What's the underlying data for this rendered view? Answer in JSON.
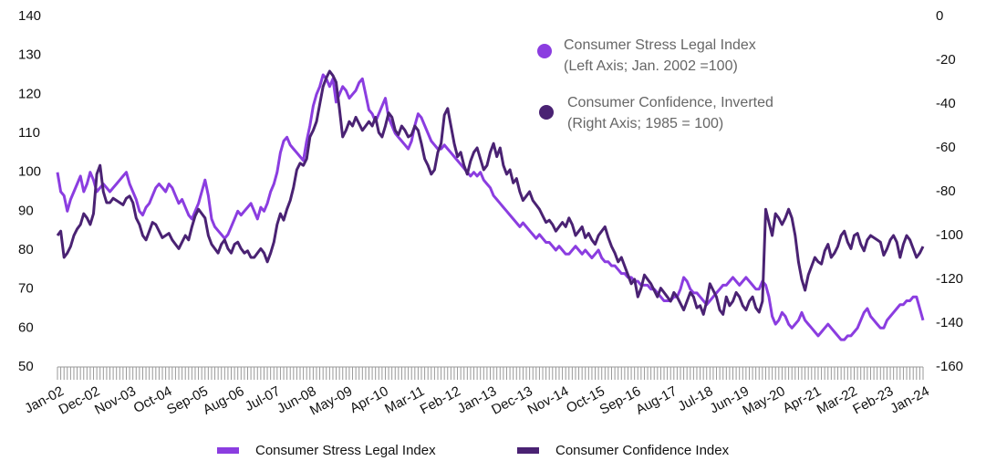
{
  "chart_data": {
    "type": "line",
    "categories": [
      "Jan-02",
      null,
      null,
      null,
      null,
      null,
      null,
      null,
      null,
      null,
      null,
      "Dec-02",
      null,
      null,
      null,
      null,
      null,
      null,
      null,
      null,
      null,
      null,
      "Nov-03",
      null,
      null,
      null,
      null,
      null,
      null,
      null,
      null,
      null,
      null,
      "Oct-04",
      null,
      null,
      null,
      null,
      null,
      null,
      null,
      null,
      null,
      null,
      "Sep-05",
      null,
      null,
      null,
      null,
      null,
      null,
      null,
      null,
      null,
      null,
      "Aug-06",
      null,
      null,
      null,
      null,
      null,
      null,
      null,
      null,
      null,
      null,
      "Jul-07",
      null,
      null,
      null,
      null,
      null,
      null,
      null,
      null,
      null,
      null,
      "Jun-08",
      null,
      null,
      null,
      null,
      null,
      null,
      null,
      null,
      null,
      null,
      "May-09",
      null,
      null,
      null,
      null,
      null,
      null,
      null,
      null,
      null,
      null,
      "Apr-10",
      null,
      null,
      null,
      null,
      null,
      null,
      null,
      null,
      null,
      null,
      "Mar-11",
      null,
      null,
      null,
      null,
      null,
      null,
      null,
      null,
      null,
      null,
      "Feb-12",
      null,
      null,
      null,
      null,
      null,
      null,
      null,
      null,
      null,
      null,
      "Jan-13",
      null,
      null,
      null,
      null,
      null,
      null,
      null,
      null,
      null,
      null,
      "Dec-13",
      null,
      null,
      null,
      null,
      null,
      null,
      null,
      null,
      null,
      null,
      "Nov-14",
      null,
      null,
      null,
      null,
      null,
      null,
      null,
      null,
      null,
      null,
      "Oct-15",
      null,
      null,
      null,
      null,
      null,
      null,
      null,
      null,
      null,
      null,
      "Sep-16",
      null,
      null,
      null,
      null,
      null,
      null,
      null,
      null,
      null,
      null,
      "Aug-17",
      null,
      null,
      null,
      null,
      null,
      null,
      null,
      null,
      null,
      null,
      "Jul-18",
      null,
      null,
      null,
      null,
      null,
      null,
      null,
      null,
      null,
      null,
      "Jun-19",
      null,
      null,
      null,
      null,
      null,
      null,
      null,
      null,
      null,
      null,
      "May-20",
      null,
      null,
      null,
      null,
      null,
      null,
      null,
      null,
      null,
      null,
      "Apr-21",
      null,
      null,
      null,
      null,
      null,
      null,
      null,
      null,
      null,
      null,
      "Mar-22",
      null,
      null,
      null,
      null,
      null,
      null,
      null,
      null,
      null,
      null,
      "Feb-23",
      null,
      null,
      null,
      null,
      null,
      null,
      null,
      null,
      null,
      null,
      "Jan-24"
    ],
    "series": [
      {
        "name": "Consumer Stress Legal Index",
        "color": "#8b3de0",
        "axis": "y",
        "values": [
          100,
          95,
          94,
          90,
          93,
          95,
          97,
          99,
          95,
          97,
          100,
          98,
          95,
          96,
          97,
          96,
          95,
          96,
          97,
          98,
          99,
          100,
          97,
          95,
          93,
          90,
          89,
          91,
          92,
          94,
          96,
          97,
          96,
          95,
          97,
          96,
          94,
          92,
          93,
          91,
          89,
          88,
          90,
          92,
          95,
          98,
          94,
          88,
          86,
          85,
          84,
          83,
          84,
          86,
          88,
          90,
          89,
          90,
          91,
          92,
          90,
          88,
          91,
          90,
          92,
          95,
          97,
          100,
          105,
          108,
          109,
          107,
          106,
          105,
          104,
          103,
          108,
          112,
          117,
          120,
          122,
          125,
          124,
          122,
          124,
          118,
          120,
          122,
          121,
          119,
          120,
          121,
          123,
          124,
          120,
          116,
          115,
          113,
          115,
          117,
          119,
          114,
          112,
          110,
          109,
          108,
          107,
          106,
          108,
          112,
          115,
          114,
          112,
          110,
          108,
          107,
          106,
          106,
          107,
          106,
          105,
          104,
          103,
          102,
          101,
          100,
          99,
          100,
          99,
          100,
          98,
          97,
          96,
          94,
          93,
          92,
          91,
          90,
          89,
          88,
          87,
          86,
          87,
          86,
          85,
          84,
          83,
          84,
          83,
          82,
          82,
          81,
          80,
          81,
          80,
          79,
          79,
          80,
          81,
          80,
          79,
          80,
          79,
          78,
          79,
          80,
          78,
          77,
          77,
          76,
          76,
          75,
          74,
          74,
          73,
          73,
          72,
          72,
          71,
          71,
          71,
          70,
          70,
          69,
          68,
          67,
          67,
          67,
          68,
          68,
          70,
          73,
          72,
          70,
          69,
          69,
          68,
          67,
          66,
          67,
          68,
          69,
          70,
          71,
          71,
          72,
          73,
          72,
          71,
          72,
          73,
          72,
          71,
          70,
          70,
          72,
          71,
          68,
          63,
          61,
          62,
          64,
          63,
          61,
          60,
          61,
          62,
          64,
          62,
          61,
          60,
          59,
          58,
          59,
          60,
          61,
          60,
          59,
          58,
          57,
          57,
          58,
          58,
          59,
          60,
          62,
          64,
          65,
          63,
          62,
          61,
          60,
          60,
          62,
          63,
          64,
          65,
          66,
          66,
          67,
          67,
          68,
          68,
          65,
          62
        ]
      },
      {
        "name": "Consumer Confidence Index",
        "color": "#4a2273",
        "axis": "y2",
        "values": [
          -100,
          -98,
          -110,
          -108,
          -105,
          -100,
          -97,
          -95,
          -90,
          -92,
          -95,
          -90,
          -72,
          -68,
          -80,
          -85,
          -85,
          -83,
          -84,
          -85,
          -86,
          -83,
          -82,
          -85,
          -92,
          -95,
          -100,
          -102,
          -98,
          -94,
          -95,
          -98,
          -101,
          -100,
          -99,
          -102,
          -104,
          -106,
          -103,
          -100,
          -102,
          -96,
          -91,
          -88,
          -90,
          -92,
          -100,
          -104,
          -106,
          -108,
          -104,
          -102,
          -106,
          -108,
          -104,
          -103,
          -106,
          -108,
          -107,
          -110,
          -110,
          -108,
          -106,
          -108,
          -112,
          -108,
          -103,
          -95,
          -90,
          -93,
          -88,
          -84,
          -78,
          -70,
          -67,
          -68,
          -65,
          -55,
          -52,
          -48,
          -40,
          -32,
          -28,
          -25,
          -27,
          -30,
          -42,
          -55,
          -52,
          -48,
          -50,
          -46,
          -49,
          -52,
          -50,
          -48,
          -50,
          -46,
          -53,
          -55,
          -50,
          -44,
          -46,
          -52,
          -54,
          -50,
          -52,
          -55,
          -54,
          -50,
          -52,
          -58,
          -65,
          -68,
          -72,
          -70,
          -62,
          -58,
          -45,
          -42,
          -50,
          -58,
          -64,
          -62,
          -68,
          -72,
          -66,
          -62,
          -60,
          -65,
          -70,
          -68,
          -62,
          -58,
          -64,
          -60,
          -68,
          -72,
          -70,
          -76,
          -74,
          -80,
          -84,
          -82,
          -80,
          -84,
          -86,
          -88,
          -91,
          -94,
          -93,
          -95,
          -98,
          -96,
          -94,
          -96,
          -92,
          -95,
          -100,
          -98,
          -96,
          -101,
          -99,
          -102,
          -104,
          -100,
          -98,
          -96,
          -101,
          -105,
          -108,
          -112,
          -110,
          -114,
          -118,
          -122,
          -120,
          -128,
          -124,
          -118,
          -120,
          -122,
          -125,
          -128,
          -124,
          -126,
          -128,
          -130,
          -126,
          -128,
          -131,
          -134,
          -130,
          -126,
          -128,
          -133,
          -132,
          -136,
          -130,
          -122,
          -125,
          -128,
          -134,
          -136,
          -128,
          -132,
          -130,
          -126,
          -128,
          -132,
          -134,
          -130,
          -128,
          -133,
          -135,
          -130,
          -88,
          -94,
          -100,
          -90,
          -92,
          -95,
          -92,
          -88,
          -92,
          -100,
          -112,
          -120,
          -125,
          -118,
          -114,
          -110,
          -112,
          -113,
          -107,
          -104,
          -110,
          -108,
          -105,
          -100,
          -98,
          -103,
          -106,
          -100,
          -99,
          -104,
          -107,
          -102,
          -100,
          -101,
          -102,
          -103,
          -109,
          -106,
          -102,
          -100,
          -103,
          -110,
          -104,
          -100,
          -102,
          -106,
          -110,
          -108,
          -105
        ]
      }
    ],
    "annotations": [
      [
        "Consumer Stress Legal Index",
        "(Left Axis; Jan. 2002 =100)"
      ],
      [
        "Consumer Confidence, Inverted",
        "(Right Axis; 1985 = 100)"
      ]
    ],
    "ylim": [
      50,
      140
    ],
    "yticks": [
      50,
      60,
      70,
      80,
      90,
      100,
      110,
      120,
      130,
      140
    ],
    "y2lim": [
      -160,
      0
    ],
    "y2ticks": [
      -160,
      -140,
      -120,
      -100,
      -80,
      -60,
      -40,
      -20,
      0
    ],
    "grid": false,
    "legend": "bottom"
  }
}
